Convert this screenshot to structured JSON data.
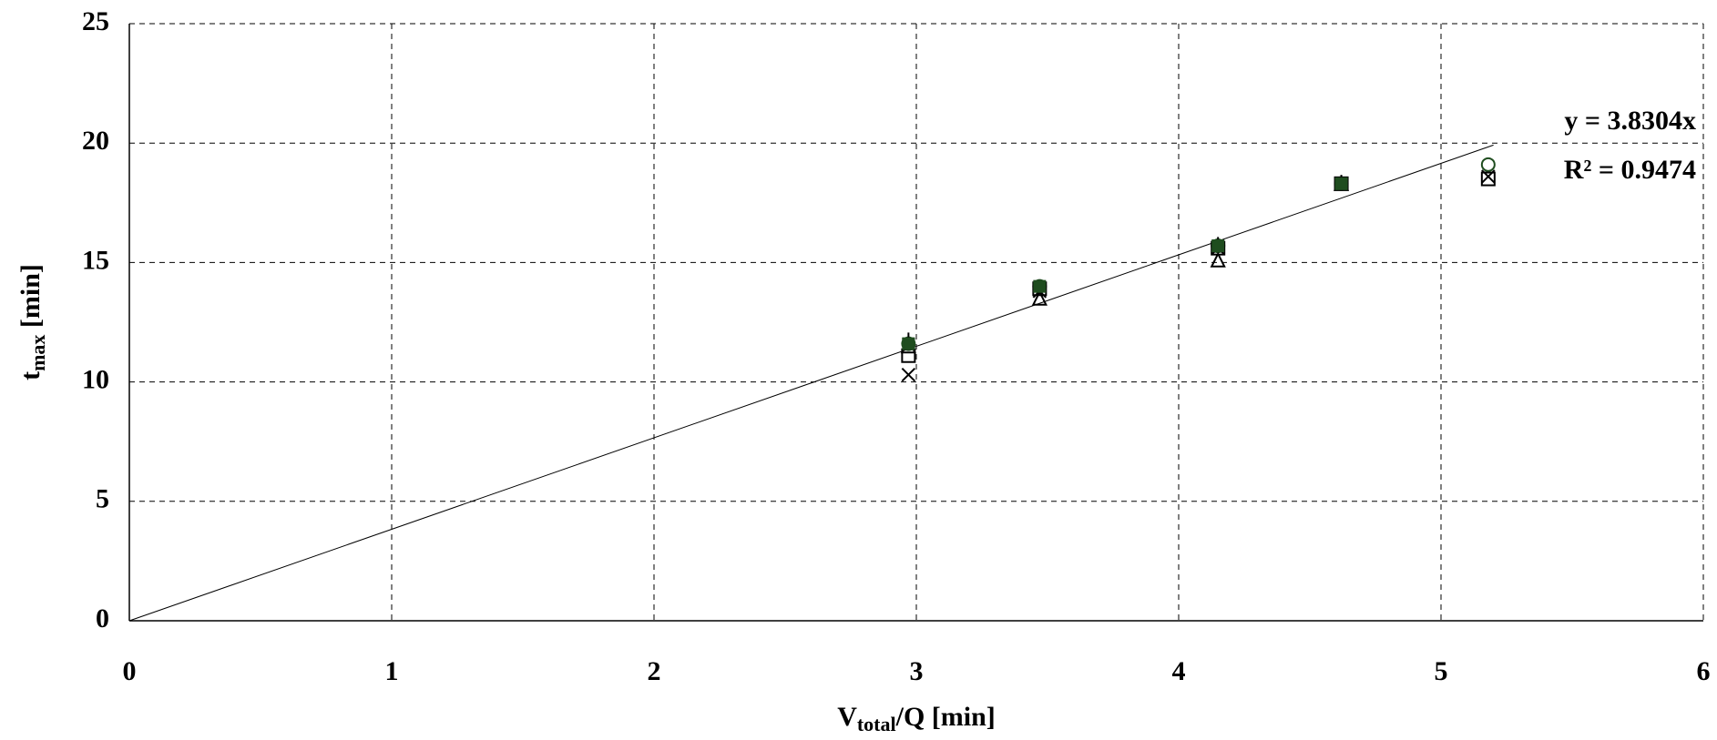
{
  "chart_data": {
    "type": "scatter",
    "x": [
      2.97,
      3.47,
      4.15,
      4.62,
      5.18
    ],
    "series": [
      {
        "marker": "circle",
        "color": "#1f4d1f",
        "values": [
          11.6,
          14.0,
          15.7,
          18.3,
          19.1
        ]
      },
      {
        "marker": "square",
        "color": "#000000",
        "values": [
          11.1,
          13.9,
          15.6,
          18.3,
          18.5
        ]
      },
      {
        "marker": "triangle",
        "color": "#000000",
        "values": [
          11.5,
          13.5,
          15.1,
          18.3,
          null
        ]
      },
      {
        "marker": "cross",
        "color": "#000000",
        "values": [
          10.3,
          13.8,
          15.6,
          18.3,
          18.6
        ]
      },
      {
        "marker": "plus",
        "color": "#000000",
        "values": [
          11.8,
          14.0,
          15.8,
          18.4,
          null
        ]
      },
      {
        "marker": "filled-square",
        "color": "#1f4d1f",
        "values": [
          11.6,
          14.0,
          15.7,
          18.3,
          null
        ]
      }
    ],
    "x_label": {
      "main": "V",
      "sub": "total",
      "rest": "/Q [min]"
    },
    "y_label": {
      "main": "t",
      "sub": "max",
      "rest": " [min]"
    },
    "xlim": [
      0,
      6
    ],
    "xticks": [
      0,
      1,
      2,
      3,
      4,
      5,
      6
    ],
    "ylim": [
      0,
      25
    ],
    "yticks": [
      0,
      5,
      10,
      15,
      20,
      25
    ],
    "grid": true,
    "trendline": {
      "slope": 3.8304,
      "x_end": 5.2,
      "equation": "y = 3.8304x",
      "r2_label": "R² = 0.9474"
    }
  }
}
